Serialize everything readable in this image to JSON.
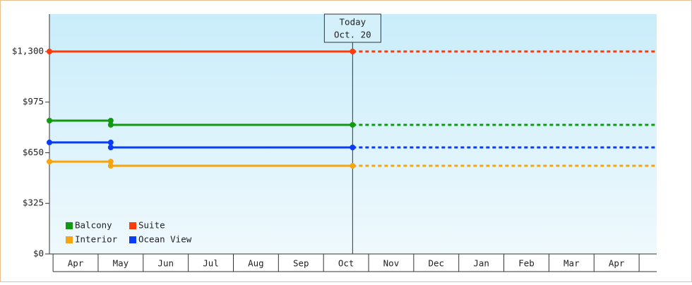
{
  "chart_data": {
    "type": "step",
    "categories": [
      "Apr",
      "May",
      "Jun",
      "Jul",
      "Aug",
      "Sep",
      "Oct",
      "Nov",
      "Dec",
      "Jan",
      "Feb",
      "Mar",
      "Apr"
    ],
    "xlim": [
      -0.08,
      13.39
    ],
    "ylim": [
      0,
      1540
    ],
    "yticks": [
      {
        "value": 0,
        "label": "$0"
      },
      {
        "value": 325,
        "label": "$325"
      },
      {
        "value": 650,
        "label": "$650"
      },
      {
        "value": 975,
        "label": "$975"
      },
      {
        "value": 1300,
        "label": "$1,300"
      }
    ],
    "today": {
      "x": 6.645,
      "label": [
        "Today",
        "Oct. 20"
      ]
    },
    "series": [
      {
        "name": "Balcony",
        "color": "#119911",
        "x": [
          -0.08,
          1.28,
          1.28,
          6.645
        ],
        "values": [
          856,
          856,
          829,
          829
        ]
      },
      {
        "name": "Suite",
        "color": "#ff3a0a",
        "x": [
          -0.08,
          6.645
        ],
        "values": [
          1300,
          1300
        ]
      },
      {
        "name": "Interior",
        "color": "#f5a511",
        "x": [
          -0.08,
          1.28,
          1.28,
          6.645
        ],
        "values": [
          593,
          593,
          566,
          566
        ]
      },
      {
        "name": "Ocean View",
        "color": "#0a3cf5",
        "x": [
          -0.08,
          1.28,
          1.28,
          6.645
        ],
        "values": [
          716,
          716,
          684,
          684
        ]
      }
    ]
  }
}
